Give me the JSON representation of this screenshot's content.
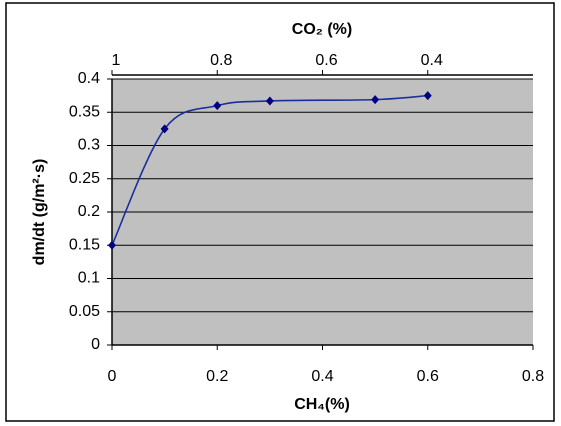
{
  "chart_data": {
    "type": "line",
    "x": [
      0,
      0.1,
      0.2,
      0.3,
      0.5,
      0.6
    ],
    "values": [
      0.15,
      0.325,
      0.36,
      0.367,
      0.369,
      0.375
    ],
    "color": "#1a2f9c",
    "marker_color": "#000080",
    "xlim": [
      0,
      0.8
    ],
    "xticks": [
      0,
      0.2,
      0.4,
      0.6,
      0.8
    ],
    "ylim": [
      0,
      0.4
    ],
    "yticks": [
      0,
      0.05,
      0.1,
      0.15,
      0.2,
      0.25,
      0.3,
      0.35,
      0.4
    ],
    "x2lim": [
      1,
      0.2
    ],
    "x2ticks": [
      1,
      0.8,
      0.6,
      0.4
    ],
    "xlabel": "CH₄(%)",
    "x2label": "CO₂ (%)",
    "ylabel": "dm/dt (g/m²·s)",
    "grid": true,
    "plot_background": "#c0c0c0"
  }
}
